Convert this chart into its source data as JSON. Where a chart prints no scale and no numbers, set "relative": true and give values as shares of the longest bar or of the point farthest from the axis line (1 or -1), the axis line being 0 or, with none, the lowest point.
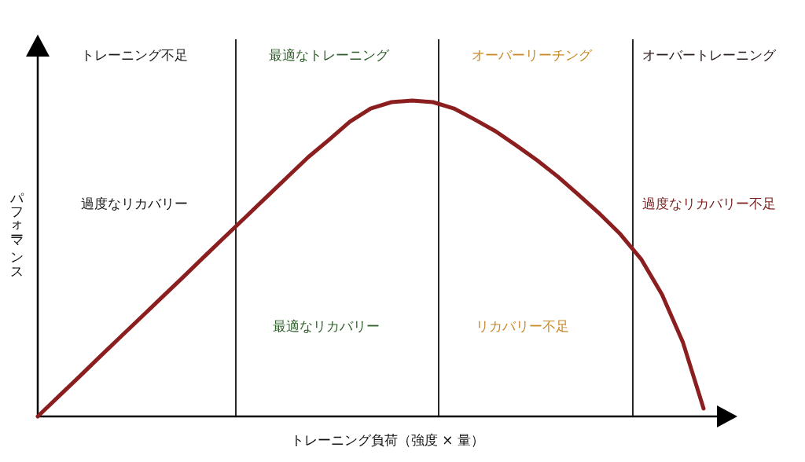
{
  "chart_data": {
    "type": "line",
    "relative": true,
    "xlabel": "トレーニング負荷（強度 × 量）",
    "ylabel": "パフォーマンス",
    "categories": [
      null,
      null,
      null,
      null,
      null,
      null,
      null,
      null,
      null,
      null,
      null,
      null,
      null,
      null,
      null,
      null,
      null,
      null,
      null,
      null,
      null,
      null,
      null,
      null,
      null,
      null,
      null,
      null,
      null,
      null,
      null,
      null,
      null
    ],
    "series": [
      {
        "color": "#8b1e1e",
        "values": [
          0,
          0.063,
          0.126,
          0.19,
          0.253,
          0.316,
          0.379,
          0.442,
          0.506,
          0.569,
          0.632,
          0.695,
          0.758,
          0.821,
          0.876,
          0.933,
          0.975,
          0.995,
          1.0,
          0.995,
          0.975,
          0.94,
          0.903,
          0.858,
          0.811,
          0.759,
          0.701,
          0.642,
          0.577,
          0.498,
          0.386,
          0.236,
          0.025
        ]
      }
    ],
    "annotations": [
      "トレーニング不足",
      "最適なトレーニング",
      "オーバーリーチング",
      "オーバートレーニング",
      "過度なリカバリー",
      "過度なリカバリー不足",
      "最適なリカバリー",
      "リカバリー不足"
    ],
    "grid": false,
    "line_style": "solid",
    "marker": "none"
  }
}
